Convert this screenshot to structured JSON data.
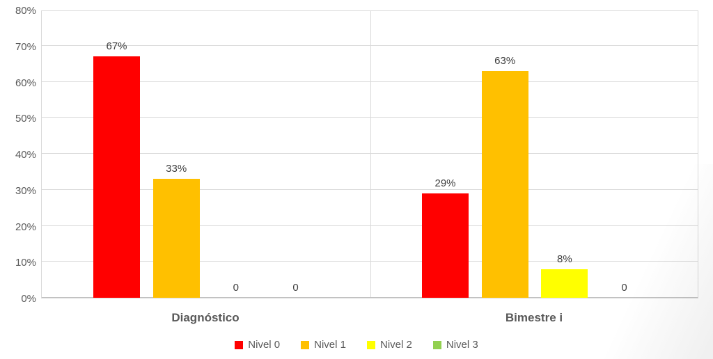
{
  "chart_data": {
    "type": "bar",
    "title": "",
    "categories": [
      "Diagnóstico",
      "Bimestre i"
    ],
    "series": [
      {
        "name": "Nivel 0",
        "color": "#ff0000",
        "values": [
          67,
          29
        ],
        "data_labels": [
          "67%",
          "29%"
        ]
      },
      {
        "name": "Nivel 1",
        "color": "#ffc000",
        "values": [
          33,
          63
        ],
        "data_labels": [
          "33%",
          "63%"
        ]
      },
      {
        "name": "Nivel 2",
        "color": "#ffff00",
        "values": [
          0,
          8
        ],
        "data_labels": [
          "0",
          "8%"
        ]
      },
      {
        "name": "Nivel 3",
        "color": "#92d050",
        "values": [
          0,
          0
        ],
        "data_labels": [
          "0",
          "0"
        ]
      }
    ],
    "y_axis": {
      "min": 0,
      "max": 80,
      "step": 10,
      "tick_labels": [
        "0%",
        "10%",
        "20%",
        "30%",
        "40%",
        "50%",
        "60%",
        "70%",
        "80%"
      ]
    },
    "grid": true,
    "legend_position": "bottom",
    "colors": {
      "gridline": "#d9d9d9",
      "axis_line": "#bfbfbf",
      "tick_text": "#595959",
      "data_label_text": "#404040",
      "category_text": "#595959"
    }
  }
}
